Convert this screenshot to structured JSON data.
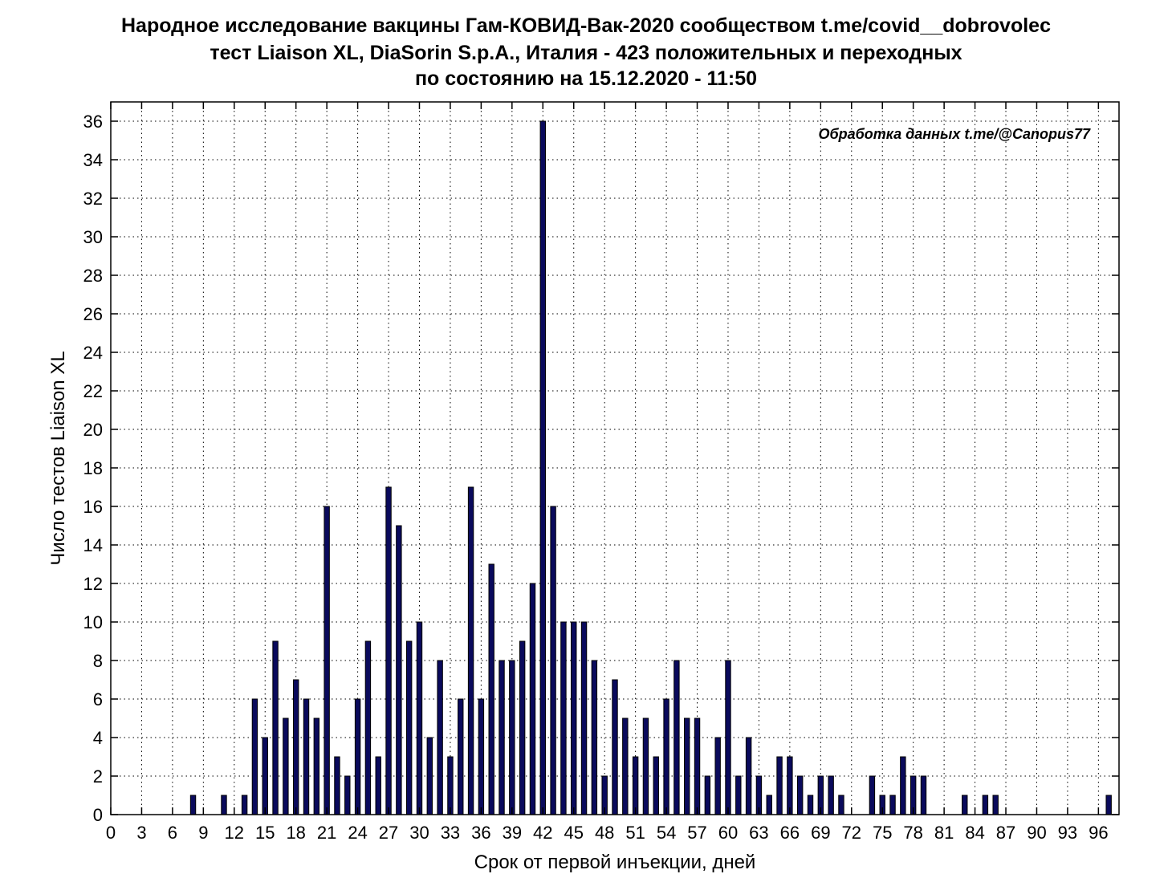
{
  "chart_data": {
    "type": "bar",
    "title_lines": [
      "Народное исследование вакцины Гам-КОВИД-Вак-2020 сообществом t.me/covid__dobrovolec",
      "тест Liaison XL, DiaSorin S.p.A., Италия - 423 положительных и переходных",
      "по состоянию на 15.12.2020 - 11:50"
    ],
    "xlabel": "Срок от первой инъекции, дней",
    "ylabel": "Число тестов Liaison XL",
    "annotation": "Обработка данных t.me/@Canopus77",
    "xlim": [
      0,
      98
    ],
    "ylim": [
      0,
      37
    ],
    "xticks": [
      0,
      3,
      6,
      9,
      12,
      15,
      18,
      21,
      24,
      27,
      30,
      33,
      36,
      39,
      42,
      45,
      48,
      51,
      54,
      57,
      60,
      63,
      66,
      69,
      72,
      75,
      78,
      81,
      84,
      87,
      90,
      93,
      96
    ],
    "yticks": [
      0,
      2,
      4,
      6,
      8,
      10,
      12,
      14,
      16,
      18,
      20,
      22,
      24,
      26,
      28,
      30,
      32,
      34,
      36
    ],
    "grid": true,
    "bar_color": "#0a0a5c",
    "x": [
      8,
      11,
      13,
      14,
      15,
      16,
      17,
      18,
      19,
      20,
      21,
      22,
      23,
      24,
      25,
      26,
      27,
      28,
      29,
      30,
      31,
      32,
      33,
      34,
      35,
      36,
      37,
      38,
      39,
      40,
      41,
      42,
      43,
      44,
      45,
      46,
      47,
      48,
      49,
      50,
      51,
      52,
      53,
      54,
      55,
      56,
      57,
      58,
      59,
      60,
      61,
      62,
      63,
      64,
      65,
      66,
      67,
      68,
      69,
      70,
      71,
      74,
      75,
      76,
      77,
      78,
      79,
      83,
      85,
      86,
      97
    ],
    "values": [
      1,
      1,
      1,
      6,
      4,
      9,
      5,
      7,
      6,
      5,
      16,
      3,
      2,
      6,
      9,
      3,
      17,
      15,
      9,
      10,
      4,
      8,
      3,
      6,
      17,
      6,
      13,
      8,
      8,
      9,
      12,
      36,
      16,
      10,
      10,
      10,
      8,
      2,
      7,
      5,
      3,
      5,
      3,
      6,
      8,
      5,
      5,
      2,
      4,
      8,
      2,
      4,
      2,
      1,
      3,
      3,
      2,
      1,
      2,
      2,
      1,
      2,
      1,
      1,
      3,
      2,
      2,
      1,
      1,
      1,
      1
    ]
  }
}
